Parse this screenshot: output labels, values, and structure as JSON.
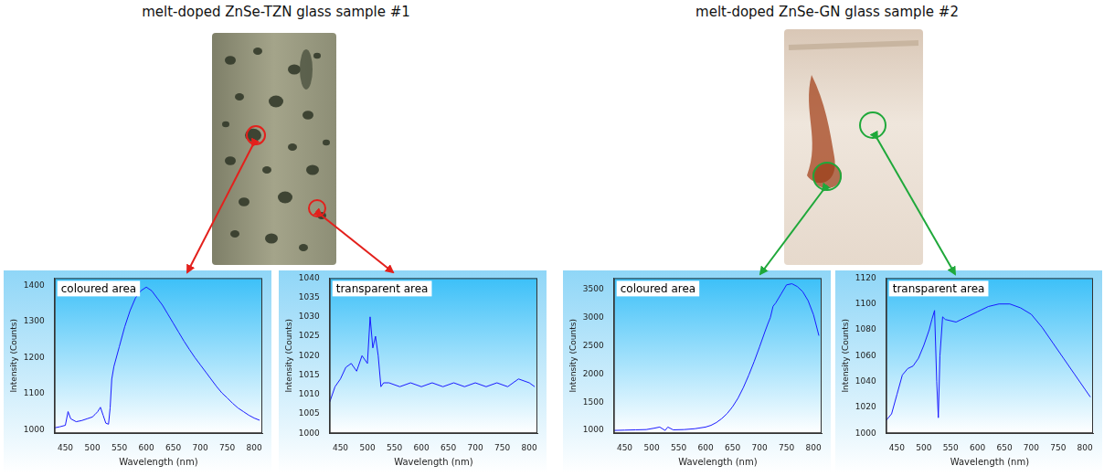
{
  "samples": [
    {
      "title": "melt-doped ZnSe-TZN glass sample #1",
      "color": "#e3201c"
    },
    {
      "title": "melt-doped ZnSe-GN glass sample #2",
      "color": "#1fa83a"
    }
  ],
  "chart_data": [
    {
      "type": "line",
      "title": "coloured area",
      "x_label": "Wavelength (nm)",
      "y_label": "Intensity (Counts)",
      "color": "#1a1aff",
      "grid": false,
      "x": [
        430,
        440,
        450,
        455,
        460,
        470,
        480,
        490,
        500,
        505,
        510,
        515,
        520,
        525,
        530,
        533,
        536,
        540,
        550,
        560,
        570,
        580,
        590,
        600,
        610,
        620,
        630,
        640,
        650,
        660,
        670,
        680,
        690,
        700,
        710,
        720,
        730,
        740,
        750,
        760,
        770,
        780,
        790,
        800,
        810
      ],
      "values": [
        1005,
        1008,
        1012,
        1050,
        1030,
        1022,
        1025,
        1030,
        1035,
        1042,
        1050,
        1062,
        1040,
        1018,
        1015,
        1060,
        1140,
        1175,
        1230,
        1285,
        1330,
        1365,
        1385,
        1395,
        1385,
        1365,
        1345,
        1320,
        1295,
        1270,
        1245,
        1222,
        1200,
        1180,
        1160,
        1140,
        1120,
        1102,
        1088,
        1073,
        1060,
        1050,
        1040,
        1032,
        1026
      ],
      "xlim": [
        430,
        815
      ],
      "xticks": [
        450,
        500,
        550,
        600,
        650,
        700,
        750,
        800
      ],
      "ylim": [
        990,
        1420
      ],
      "yticks": [
        1000,
        1100,
        1200,
        1300,
        1400
      ]
    },
    {
      "type": "line",
      "title": "transparent area",
      "x_label": "Wavelength (nm)",
      "y_label": "Intensity (Counts)",
      "color": "#1a1aff",
      "grid": false,
      "x": [
        430,
        440,
        450,
        460,
        470,
        480,
        490,
        500,
        505,
        510,
        515,
        520,
        525,
        530,
        540,
        560,
        580,
        600,
        620,
        640,
        660,
        680,
        700,
        720,
        740,
        760,
        780,
        800,
        810
      ],
      "values": [
        1008,
        1012,
        1014,
        1017,
        1018,
        1016,
        1020,
        1018,
        1030,
        1022,
        1025,
        1020,
        1012,
        1013,
        1013,
        1012,
        1013,
        1012,
        1013,
        1012,
        1013,
        1012,
        1013,
        1012,
        1013,
        1012,
        1014,
        1013,
        1012
      ],
      "xlim": [
        430,
        815
      ],
      "xticks": [
        450,
        500,
        550,
        600,
        650,
        700,
        750,
        800
      ],
      "ylim": [
        1000,
        1040
      ],
      "yticks": [
        1000,
        1005,
        1010,
        1015,
        1020,
        1025,
        1030,
        1035,
        1040
      ]
    },
    {
      "type": "line",
      "title": "coloured area",
      "x_label": "Wavelength (nm)",
      "y_label": "Intensity (Counts)",
      "color": "#1a1aff",
      "grid": false,
      "x": [
        430,
        450,
        470,
        490,
        505,
        515,
        525,
        530,
        540,
        560,
        580,
        600,
        610,
        620,
        630,
        640,
        650,
        660,
        670,
        680,
        690,
        700,
        710,
        715,
        720,
        725,
        730,
        740,
        750,
        760,
        770,
        780,
        790,
        800,
        810
      ],
      "values": [
        1000,
        1005,
        1010,
        1015,
        1040,
        1060,
        1000,
        1060,
        1010,
        1015,
        1030,
        1060,
        1090,
        1140,
        1210,
        1300,
        1420,
        1570,
        1760,
        1980,
        2220,
        2480,
        2750,
        2880,
        3000,
        3200,
        3260,
        3420,
        3580,
        3600,
        3550,
        3460,
        3300,
        3050,
        2680
      ],
      "xlim": [
        430,
        815
      ],
      "xticks": [
        450,
        500,
        550,
        600,
        650,
        700,
        750,
        800
      ],
      "ylim": [
        950,
        3700
      ],
      "yticks": [
        1000,
        1500,
        2000,
        2500,
        3000,
        3500
      ]
    },
    {
      "type": "line",
      "title": "transparent area",
      "x_label": "Wavelength (nm)",
      "y_label": "Intensity (Counts)",
      "color": "#1a1aff",
      "grid": false,
      "x": [
        430,
        440,
        450,
        460,
        470,
        480,
        490,
        500,
        510,
        515,
        520,
        524,
        527,
        530,
        535,
        540,
        560,
        580,
        600,
        620,
        640,
        660,
        680,
        700,
        720,
        740,
        760,
        780,
        800,
        810
      ],
      "values": [
        1010,
        1015,
        1030,
        1045,
        1050,
        1052,
        1058,
        1068,
        1080,
        1088,
        1095,
        1040,
        1012,
        1060,
        1090,
        1088,
        1086,
        1090,
        1094,
        1098,
        1100,
        1100,
        1097,
        1092,
        1082,
        1070,
        1058,
        1046,
        1034,
        1028
      ],
      "xlim": [
        430,
        815
      ],
      "xticks": [
        450,
        500,
        550,
        600,
        650,
        700,
        750,
        800
      ],
      "ylim": [
        1000,
        1120
      ],
      "yticks": [
        1000,
        1020,
        1040,
        1060,
        1080,
        1100,
        1120
      ]
    }
  ]
}
